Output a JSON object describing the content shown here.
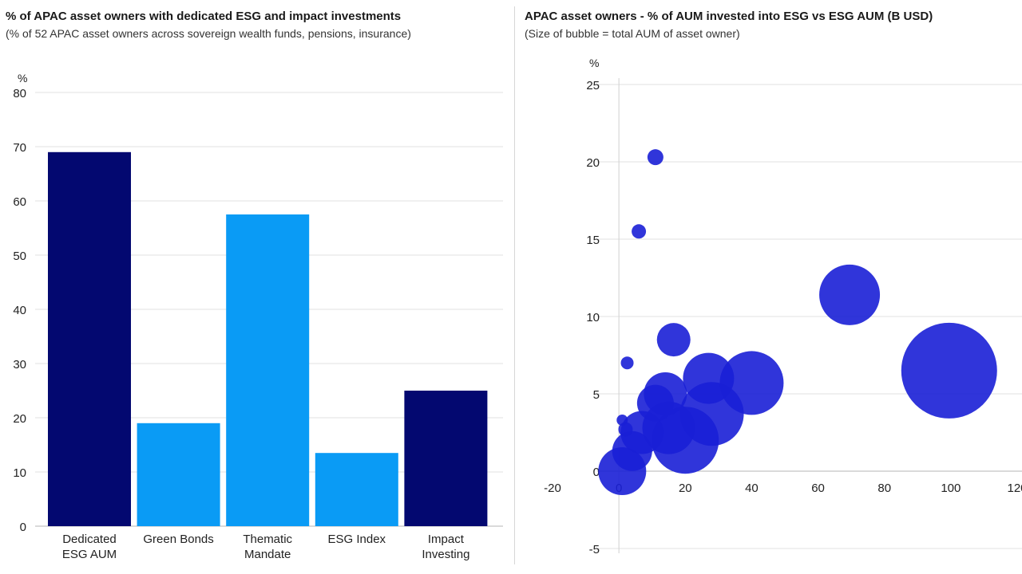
{
  "chart_data": [
    {
      "type": "bar",
      "title": "% of APAC asset owners with dedicated ESG and impact investments",
      "subtitle": "(% of 52 APAC asset owners across sovereign wealth funds, pensions, insurance)",
      "ylabel": "%",
      "ylim": [
        0,
        80
      ],
      "yticks": [
        0,
        10,
        20,
        30,
        40,
        50,
        60,
        70,
        80
      ],
      "grid": true,
      "categories": [
        [
          "Dedicated",
          "ESG AUM"
        ],
        [
          "Green Bonds"
        ],
        [
          "Thematic",
          "Mandate"
        ],
        [
          "ESG Index"
        ],
        [
          "Impact",
          "Investing"
        ]
      ],
      "values": [
        69,
        19,
        57.5,
        13.5,
        25
      ],
      "colors": [
        "#030870",
        "#0a9bf5",
        "#0a9bf5",
        "#0a9bf5",
        "#030870"
      ]
    },
    {
      "type": "scatter",
      "title": "APAC asset owners - % of AUM invested into ESG vs ESG AUM (B USD)",
      "subtitle": "(Size of bubble = total AUM of asset owner)",
      "ylabel": "%",
      "xlim": [
        -20,
        120
      ],
      "ylim": [
        -5,
        25
      ],
      "xticks": [
        -20,
        0,
        20,
        40,
        60,
        80,
        100,
        120
      ],
      "yticks": [
        -5,
        0,
        5,
        10,
        15,
        20,
        25
      ],
      "grid": true,
      "color": "#1a1fd6",
      "points": [
        {
          "x": 11,
          "y": 20.3,
          "size": 10
        },
        {
          "x": 6,
          "y": 15.5,
          "size": 9
        },
        {
          "x": 2.5,
          "y": 7,
          "size": 8
        },
        {
          "x": 1,
          "y": 3.3,
          "size": 7
        },
        {
          "x": 2,
          "y": 2.7,
          "size": 9
        },
        {
          "x": 16.5,
          "y": 8.5,
          "size": 21
        },
        {
          "x": 27,
          "y": 6,
          "size": 32
        },
        {
          "x": 40,
          "y": 5.7,
          "size": 40
        },
        {
          "x": 69.5,
          "y": 11.4,
          "size": 38
        },
        {
          "x": 99.5,
          "y": 6.5,
          "size": 60
        },
        {
          "x": 14,
          "y": 5,
          "size": 27
        },
        {
          "x": 11,
          "y": 4.4,
          "size": 23
        },
        {
          "x": 28,
          "y": 3.7,
          "size": 40
        },
        {
          "x": 15,
          "y": 2.8,
          "size": 33
        },
        {
          "x": 20,
          "y": 2,
          "size": 42
        },
        {
          "x": 7,
          "y": 2.5,
          "size": 27
        },
        {
          "x": 4,
          "y": 1.3,
          "size": 25
        },
        {
          "x": 1,
          "y": 0,
          "size": 30
        }
      ]
    }
  ]
}
